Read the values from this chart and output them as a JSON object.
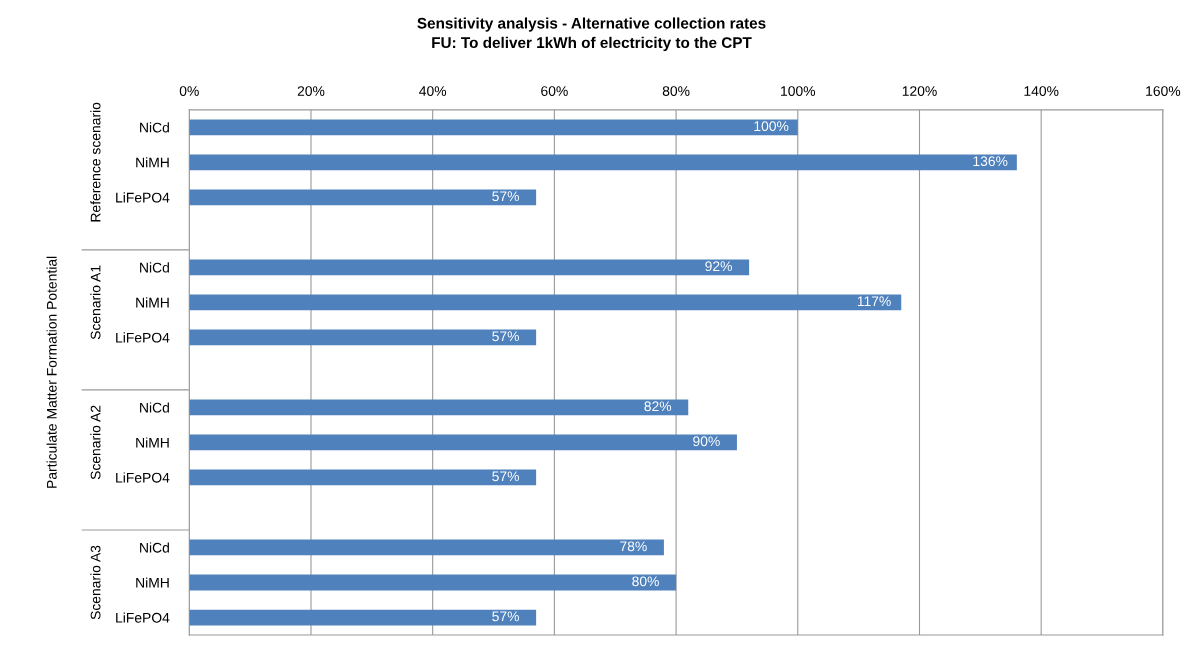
{
  "chart_data": {
    "type": "bar",
    "orientation": "horizontal",
    "title": "Sensitivity analysis - Alternative collection rates",
    "subtitle": "FU: To deliver 1kWh of electricity to the CPT",
    "ylabel": "Particulate Matter Formation Potential",
    "categories": [
      "NiCd",
      "NiMH",
      "LiFePO4",
      null,
      "NiCd",
      "NiMH",
      "LiFePO4",
      null,
      "NiCd",
      "NiMH",
      "LiFePO4",
      null,
      "NiCd",
      "NiMH",
      "LiFePO4"
    ],
    "values": [
      100,
      136,
      57,
      null,
      92,
      117,
      57,
      null,
      82,
      90,
      57,
      null,
      78,
      80,
      57
    ],
    "value_labels": [
      "100%",
      "136%",
      "57%",
      null,
      "92%",
      "117%",
      "57%",
      null,
      "82%",
      "90%",
      "57%",
      null,
      "78%",
      "80%",
      "57%"
    ],
    "color": "#4f81bd",
    "xlim": [
      0,
      160
    ],
    "xticks": [
      {
        "value": 0,
        "label": "0%"
      },
      {
        "value": 20,
        "label": "20%"
      },
      {
        "value": 40,
        "label": "40%"
      },
      {
        "value": 60,
        "label": "60%"
      },
      {
        "value": 80,
        "label": "80%"
      },
      {
        "value": 100,
        "label": "100%"
      },
      {
        "value": 120,
        "label": "120%"
      },
      {
        "value": 140,
        "label": "140%"
      },
      {
        "value": 160,
        "label": "160%"
      }
    ],
    "grid": "x",
    "annotations": [
      "Reference scenario",
      "Scenario A1",
      "Scenario A2",
      "Scenario A3"
    ]
  }
}
